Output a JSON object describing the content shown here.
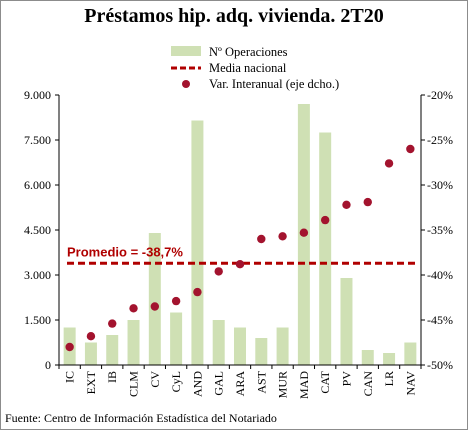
{
  "colors": {
    "bar": "#cfe0b4",
    "dot": "#a3132e",
    "mean_line": "#b00000",
    "annotation": "#b00000",
    "axis": "#000000"
  },
  "source": "Fuente: Centro de Información Estadística del Notariado",
  "chart_data": {
    "type": "bar",
    "title": "Préstamos hip. adq. vivienda. 2T20",
    "categories": [
      "IC",
      "EXT",
      "IB",
      "CLM",
      "CV",
      "CyL",
      "AND",
      "GAL",
      "ARA",
      "AST",
      "MUR",
      "MAD",
      "CAT",
      "PV",
      "CAN",
      "LR",
      "NAV"
    ],
    "series": [
      {
        "name": "Nº Operaciones",
        "type": "bar",
        "axis": "left",
        "values": [
          1250,
          750,
          1000,
          1500,
          4400,
          1750,
          8150,
          1500,
          1250,
          900,
          1250,
          8700,
          7750,
          2900,
          500,
          400,
          750
        ]
      },
      {
        "name": "Var. Interanual (eje dcho.)",
        "type": "scatter",
        "axis": "right",
        "values": [
          -48.0,
          -46.8,
          -45.4,
          -43.7,
          -43.5,
          -42.9,
          -41.9,
          -39.6,
          -38.8,
          -36.0,
          -35.7,
          -35.3,
          -33.9,
          -32.2,
          -31.9,
          -27.6,
          -26.0
        ]
      }
    ],
    "reference_line": {
      "name": "Media nacional",
      "axis": "right",
      "value": -38.7,
      "label": "Promedio = -38,7%"
    },
    "y_left": {
      "range": [
        0,
        9000
      ],
      "ticks": [
        "0",
        "1.500",
        "3.000",
        "4.500",
        "6.000",
        "7.500",
        "9.000"
      ]
    },
    "y_right": {
      "range": [
        -50,
        -20
      ],
      "ticks": [
        "-50%",
        "-45%",
        "-40%",
        "-35%",
        "-30%",
        "-25%",
        "-20%"
      ]
    },
    "legend": {
      "position": "top-right",
      "entries": [
        "Nº Operaciones",
        "Media nacional",
        "Var. Interanual (eje dcho.)"
      ]
    },
    "grid": false
  }
}
